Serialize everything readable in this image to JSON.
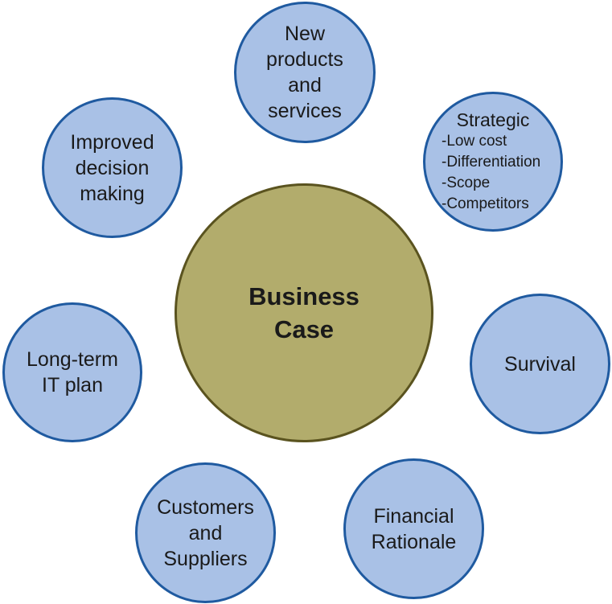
{
  "center": {
    "lines": [
      "Business",
      "Case"
    ]
  },
  "nodes": {
    "new_products": {
      "lines": [
        "New",
        "products",
        "and",
        "services"
      ]
    },
    "strategic": {
      "title": "Strategic",
      "items": [
        "-Low cost",
        "-Differentiation",
        "-Scope",
        "-Competitors"
      ]
    },
    "improved": {
      "lines": [
        "Improved",
        "decision",
        "making"
      ]
    },
    "long_term": {
      "lines": [
        "Long-term",
        "IT plan"
      ]
    },
    "survival": {
      "lines": [
        "Survival"
      ]
    },
    "customers": {
      "lines": [
        "Customers",
        "and",
        "Suppliers"
      ]
    },
    "financial": {
      "lines": [
        "Financial",
        "Rationale"
      ]
    }
  },
  "colors": {
    "outer_fill": "#a9c1e6",
    "outer_border": "#1f5aa0",
    "center_fill": "#b2ac6c",
    "center_border": "#5a531f"
  }
}
